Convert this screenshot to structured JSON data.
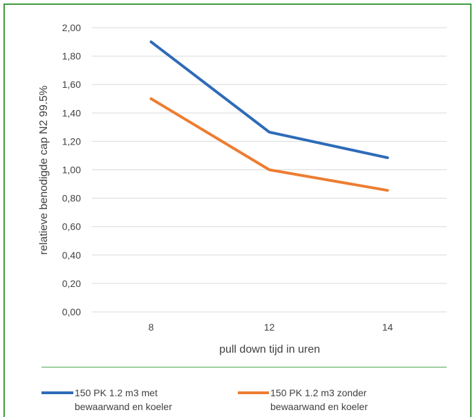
{
  "chart_data": {
    "type": "line",
    "title": "",
    "xlabel": "pull down tijd in uren",
    "ylabel": "relatieve benodigde cap N2 99.5%",
    "categories": [
      "8",
      "12",
      "14"
    ],
    "ylim": [
      0,
      2
    ],
    "yticks": [
      "0,00",
      "0,20",
      "0,40",
      "0,60",
      "0,80",
      "1,00",
      "1,20",
      "1,40",
      "1,60",
      "1,80",
      "2,00"
    ],
    "grid": true,
    "legend_position": "bottom",
    "series": [
      {
        "name_lines": [
          "150 PK 1.2 m3 met",
          "bewaarwand en koeler"
        ],
        "values": [
          1.9,
          1.265,
          1.085
        ],
        "color": "#2e6bb8"
      },
      {
        "name_lines": [
          "150 PK 1.2 m3 zonder",
          "bewaarwand en koeler"
        ],
        "values": [
          1.5,
          1.0,
          0.855
        ],
        "color": "#ed7d31"
      }
    ]
  },
  "colors": {
    "frame": "#3f9b3f",
    "grid": "#d9d9d9",
    "text": "#404040"
  }
}
